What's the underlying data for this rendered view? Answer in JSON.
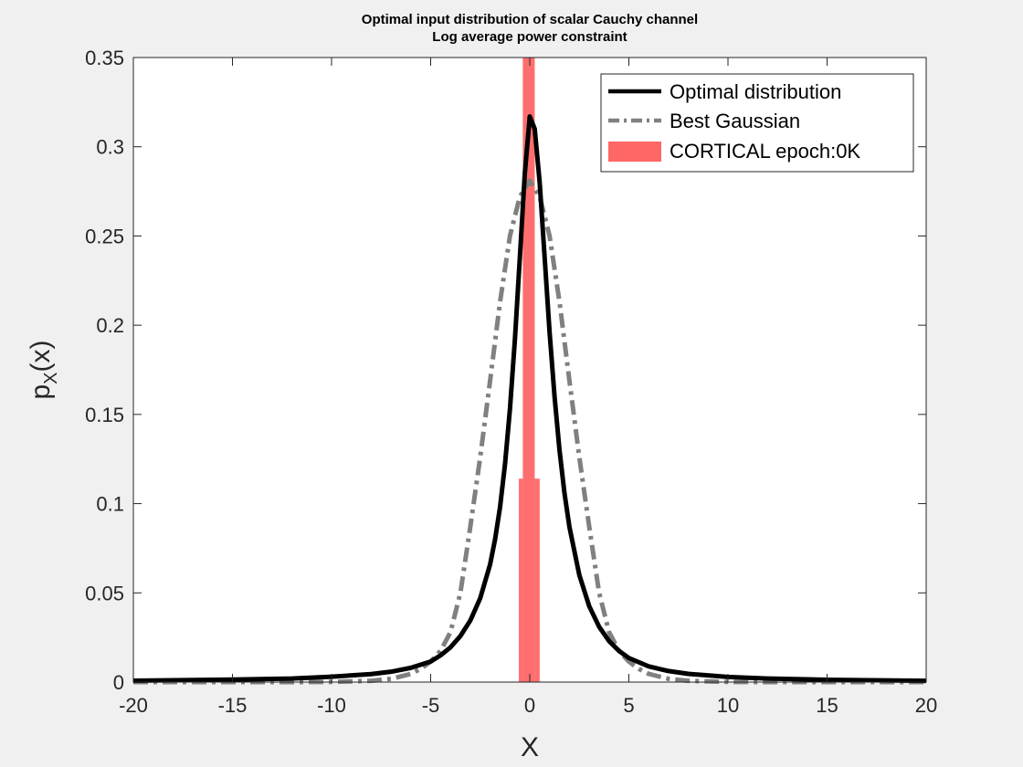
{
  "chart_data": {
    "type": "line",
    "title_lines": [
      "Optimal input distribution of scalar Cauchy channel",
      "Log average power constraint"
    ],
    "xlabel": "X",
    "ylabel_main": "p",
    "ylabel_sub": "X",
    "ylabel_tail": "(x)",
    "xlim": [
      -20,
      20
    ],
    "ylim": [
      0,
      0.35
    ],
    "xticks": [
      -20,
      -15,
      -10,
      -5,
      0,
      5,
      10,
      15,
      20
    ],
    "yticks": [
      0,
      0.05,
      0.1,
      0.15,
      0.2,
      0.25,
      0.3,
      0.35
    ],
    "xtick_labels": [
      "-20",
      "-15",
      "-10",
      "-5",
      "0",
      "5",
      "10",
      "15",
      "20"
    ],
    "ytick_labels": [
      "0",
      "0.05",
      "0.1",
      "0.15",
      "0.2",
      "0.25",
      "0.3",
      "0.35"
    ],
    "grid": false,
    "legend_position": "top-right",
    "series": [
      {
        "name": "Optimal distribution",
        "style": "solid",
        "color": "#000000",
        "x": [
          -20,
          -15,
          -12,
          -10,
          -8,
          -7,
          -6,
          -5,
          -4.5,
          -4,
          -3.5,
          -3,
          -2.5,
          -2,
          -1.75,
          -1.5,
          -1.25,
          -1,
          -0.75,
          -0.5,
          -0.25,
          0,
          0.25,
          0.5,
          0.75,
          1,
          1.25,
          1.5,
          1.75,
          2,
          2.5,
          3,
          3.5,
          4,
          4.5,
          5,
          6,
          7,
          8,
          10,
          12,
          15,
          20
        ],
        "values": [
          0.0008,
          0.0014,
          0.002,
          0.003,
          0.0045,
          0.0058,
          0.008,
          0.0115,
          0.015,
          0.0195,
          0.0258,
          0.0345,
          0.047,
          0.066,
          0.08,
          0.098,
          0.122,
          0.153,
          0.192,
          0.238,
          0.285,
          0.317,
          0.31,
          0.28,
          0.238,
          0.196,
          0.16,
          0.13,
          0.106,
          0.087,
          0.06,
          0.0425,
          0.031,
          0.023,
          0.0175,
          0.0135,
          0.0088,
          0.0062,
          0.0046,
          0.0029,
          0.002,
          0.0013,
          0.0007
        ]
      },
      {
        "name": "Best Gaussian",
        "style": "dashdot",
        "color": "#808080",
        "x": [
          -20,
          -15,
          -12,
          -10,
          -8,
          -7,
          -6,
          -5.5,
          -5,
          -4.5,
          -4,
          -3.5,
          -3,
          -2.5,
          -2,
          -1.5,
          -1,
          -0.5,
          0,
          0.5,
          1,
          1.5,
          2,
          2.5,
          3,
          3.5,
          4,
          4.5,
          5,
          5.5,
          6,
          7,
          8,
          10,
          12,
          15,
          20
        ],
        "values": [
          0,
          0,
          0,
          0.0001,
          0.0007,
          0.0018,
          0.0046,
          0.0074,
          0.0115,
          0.0175,
          0.028,
          0.05,
          0.087,
          0.126,
          0.169,
          0.213,
          0.25,
          0.272,
          0.281,
          0.272,
          0.25,
          0.213,
          0.169,
          0.126,
          0.087,
          0.05,
          0.028,
          0.0175,
          0.0115,
          0.0074,
          0.0046,
          0.0018,
          0.0007,
          0.0001,
          0,
          0,
          0
        ]
      },
      {
        "name": "CORTICAL epoch:0K",
        "style": "histogram",
        "color": "#ff6666",
        "bins": [
          {
            "x0": -0.55,
            "x1": -0.35,
            "value": 0.114
          },
          {
            "x0": -0.35,
            "x1": 0.25,
            "value": 0.35
          },
          {
            "x0": 0.25,
            "x1": 0.5,
            "value": 0.114
          }
        ]
      }
    ]
  }
}
